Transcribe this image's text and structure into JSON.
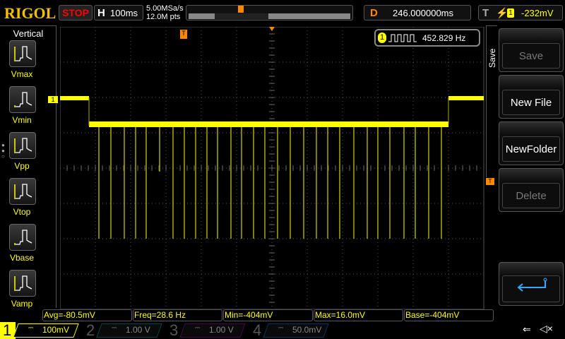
{
  "header": {
    "brand": "RIGOL",
    "run_state": "STOP",
    "horizontal_key": "H",
    "timebase": "100ms",
    "sample_rate": "5.00MSa/s",
    "memory_depth": "12.0M pts",
    "delay_key": "D",
    "delay": "246.000000ms",
    "trigger_key": "T",
    "trigger_edge": "rising-edge-icon",
    "trigger_source": "1",
    "trigger_level": "-232mV"
  },
  "left_panel": {
    "title": "Vertical",
    "items": [
      {
        "label": "Vmax"
      },
      {
        "label": "Vmin"
      },
      {
        "label": "Vpp"
      },
      {
        "label": "Vtop"
      },
      {
        "label": "Vbase"
      },
      {
        "label": "Vamp"
      }
    ]
  },
  "frequency_counter": {
    "channel": "1",
    "value": "452.829 Hz"
  },
  "measurements": [
    "Avg=-80.5mV",
    "Freq=28.6 Hz",
    "Min=-404mV",
    "Max=16.0mV",
    "Base=-404mV"
  ],
  "channels": [
    {
      "num": "1",
      "coupling": "⎓",
      "scale": "100mV",
      "color": "#ffff00",
      "active": true
    },
    {
      "num": "2",
      "coupling": "⎓",
      "scale": "1.00 V",
      "color": "#00c0c0",
      "active": false
    },
    {
      "num": "3",
      "coupling": "⎓",
      "scale": "1.00 V",
      "color": "#c000c0",
      "active": false
    },
    {
      "num": "4",
      "coupling": "⎓",
      "scale": "50.0mV",
      "color": "#2080ff",
      "active": false
    }
  ],
  "right_menu": {
    "title": "Save",
    "items": [
      {
        "label": "Save",
        "enabled": false
      },
      {
        "label": "New File",
        "enabled": true
      },
      {
        "label": "NewFolder",
        "enabled": true
      },
      {
        "label": "Delete",
        "enabled": false
      }
    ],
    "return_icon": "return-arrow-icon"
  },
  "status_icons": [
    "usb-icon",
    "speaker-muted-icon"
  ],
  "colors": {
    "ch1": "#ffff00",
    "trigger": "#ff8000",
    "brand": "#f0c000",
    "stop": "#ff0000"
  },
  "channel_marker": "1"
}
